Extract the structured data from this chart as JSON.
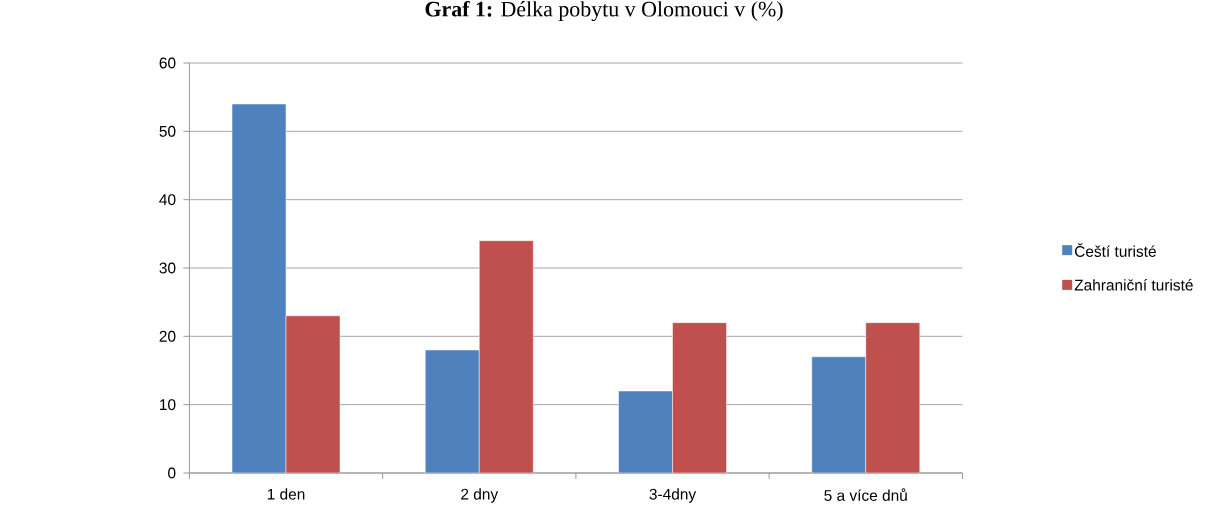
{
  "chart_data": {
    "type": "bar",
    "title": "**Graf 1:** Délka pobytu v Olomouci v (%)",
    "categories": [
      "1 den",
      "2 dny",
      "3-4dny",
      "5 a více dnů"
    ],
    "series": [
      {
        "name": "Čeští turisté",
        "color": "#4f81bd",
        "values": [
          54,
          18,
          12,
          17
        ]
      },
      {
        "name": "Zahraniční turisté",
        "color": "#c0504d",
        "values": [
          23,
          34,
          22,
          22
        ]
      }
    ],
    "ylim": [
      0,
      60
    ],
    "yticks": [
      0,
      10,
      20,
      30,
      40,
      50,
      60
    ],
    "grid": "y",
    "legend": "right"
  }
}
